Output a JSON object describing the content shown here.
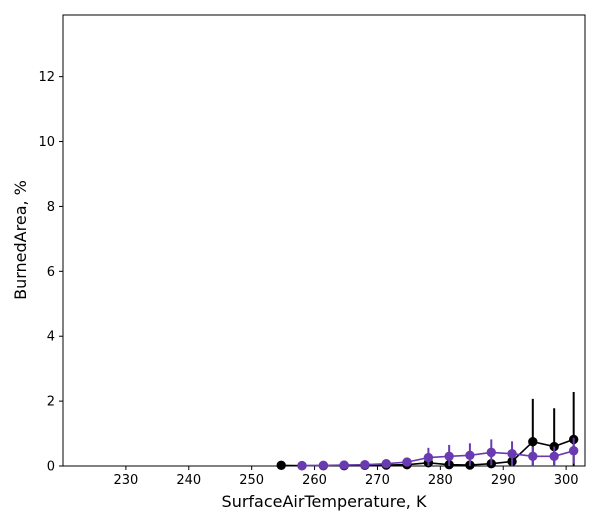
{
  "chart_data": {
    "type": "line",
    "title": "",
    "xlabel": "SurfaceAirTemperature,  K",
    "ylabel": "BurnedArea,  %",
    "xlim": [
      220,
      303
    ],
    "ylim": [
      0,
      13.9
    ],
    "xticks": [
      230,
      240,
      250,
      260,
      270,
      280,
      290,
      300
    ],
    "yticks": [
      0,
      2,
      4,
      6,
      8,
      10,
      12
    ],
    "grid": false,
    "legend": "none",
    "series": [
      {
        "color": "#000000",
        "x": [
          254.7,
          258.0,
          261.4,
          264.7,
          268.0,
          271.4,
          274.7,
          278.1,
          281.4,
          284.7,
          288.1,
          291.4,
          294.7,
          298.1,
          301.2
        ],
        "y": [
          0.02,
          0.01,
          0.01,
          0.01,
          0.02,
          0.03,
          0.04,
          0.1,
          0.04,
          0.03,
          0.07,
          0.14,
          0.75,
          0.6,
          0.82
        ],
        "err": [
          0.0,
          0.0,
          0.0,
          0.0,
          0.0,
          0.0,
          0.0,
          0.05,
          0.03,
          0.03,
          0.06,
          0.1,
          1.32,
          1.18,
          1.46
        ]
      },
      {
        "color": "#6a3bb0",
        "x": [
          258.0,
          261.4,
          264.7,
          268.0,
          271.4,
          274.7,
          278.1,
          281.4,
          284.7,
          288.1,
          291.4,
          294.7,
          298.1,
          301.2
        ],
        "y": [
          0.01,
          0.02,
          0.03,
          0.04,
          0.07,
          0.12,
          0.26,
          0.3,
          0.33,
          0.42,
          0.38,
          0.3,
          0.3,
          0.47
        ],
        "err": [
          0.01,
          0.02,
          0.03,
          0.04,
          0.07,
          0.12,
          0.3,
          0.35,
          0.37,
          0.4,
          0.38,
          0.3,
          0.3,
          0.4
        ]
      }
    ]
  }
}
